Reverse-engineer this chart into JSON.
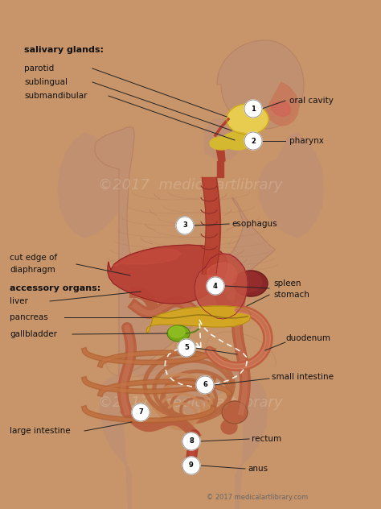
{
  "bg_color": "#c8956a",
  "fig_width": 4.74,
  "fig_height": 6.32,
  "copyright": "© 2017 medicalartlibrary.com",
  "watermark1_text": "©2017  medicalartlibrary",
  "watermark2_text": "©2017  medicalartlibrary",
  "skin_body": "#c8906a",
  "skin_dark": "#b07050",
  "skin_shadow": "#a86040",
  "organ_esoph": "#b84030",
  "organ_stomach": "#c05040",
  "organ_liver": "#a83828",
  "organ_spleen": "#883030",
  "organ_pancreas": "#d4a820",
  "organ_gb": "#8aaa20",
  "organ_intestine": "#c07850",
  "organ_intestine2": "#d09060",
  "organ_large": "#b86040",
  "organ_rectum": "#b84030",
  "organ_salivary": "#e8cc50",
  "line_color": "#222222",
  "label_color": "#111111"
}
